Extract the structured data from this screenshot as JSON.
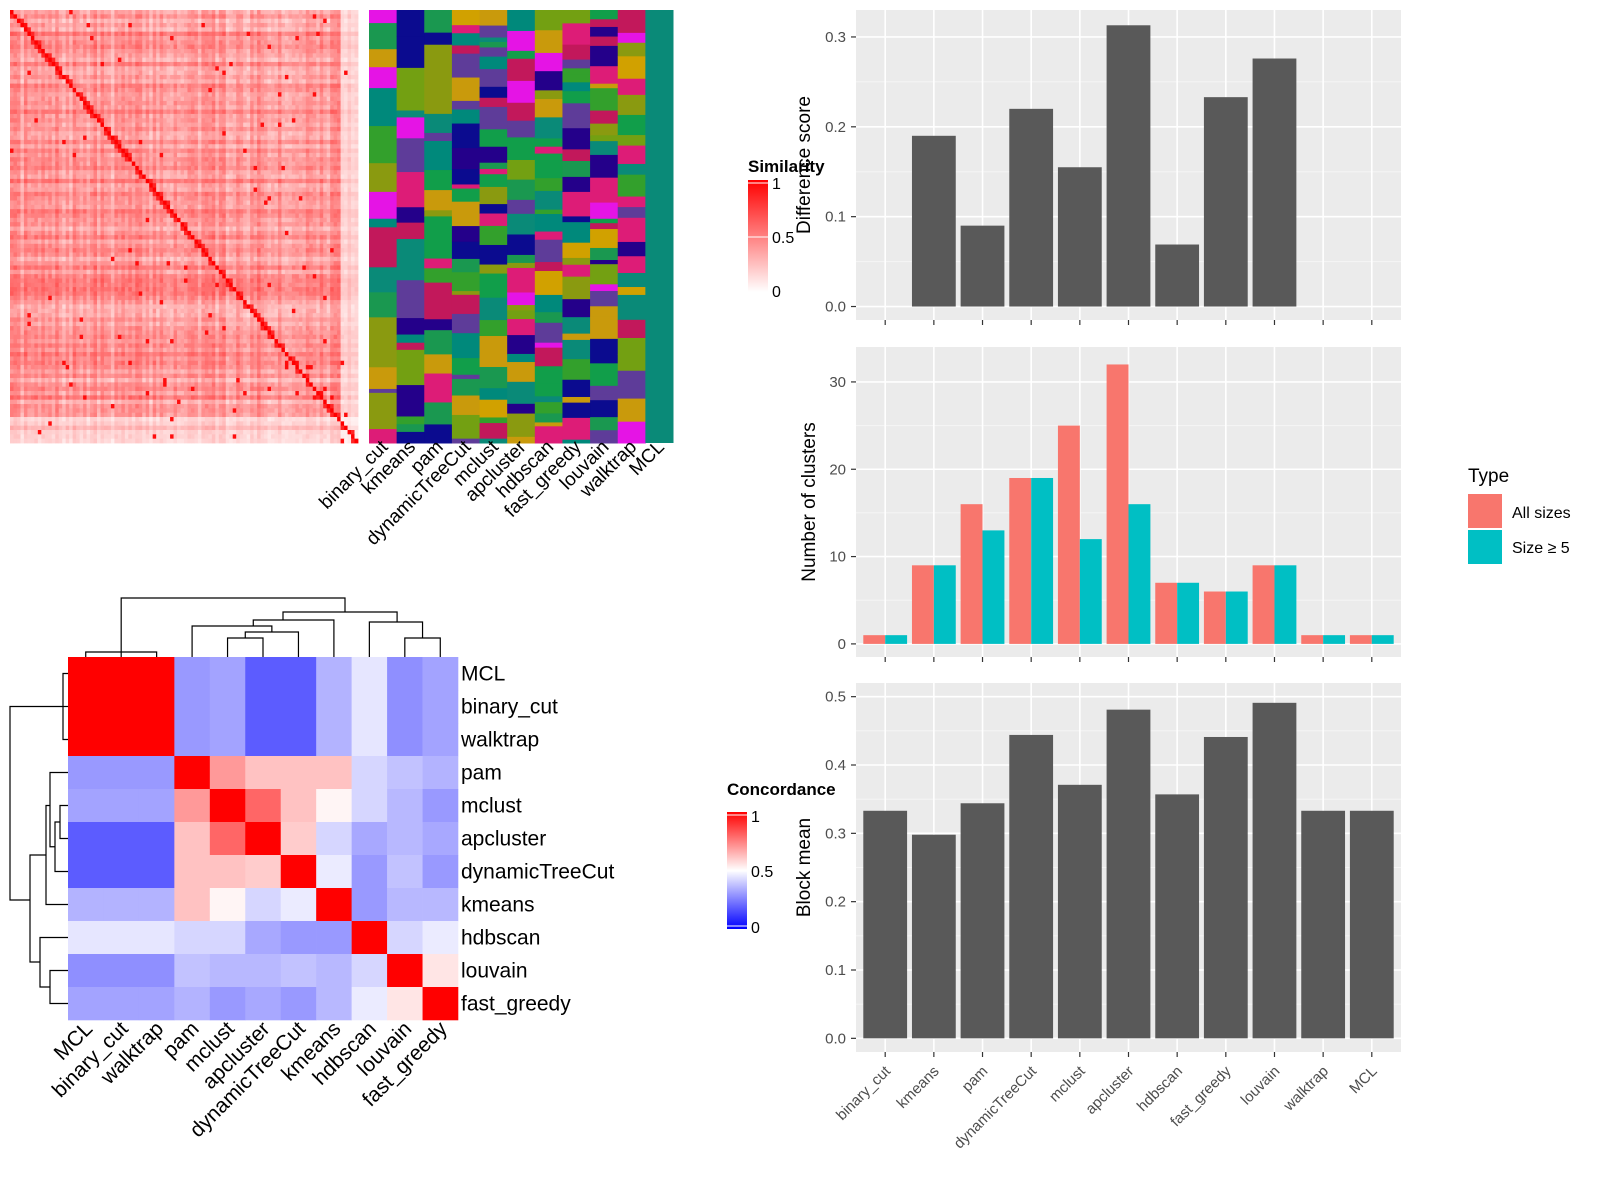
{
  "chart_data": [
    {
      "type": "heatmap",
      "panel": "similarity-heatmap",
      "legend_title": "Similarity",
      "legend_ticks": [
        "0",
        "0.5",
        "1"
      ],
      "color_low": "#ffffff",
      "color_high": "#ff0000",
      "annotation_columns": [
        "binary_cut",
        "kmeans",
        "pam",
        "dynamicTreeCut",
        "mclust",
        "apcluster",
        "hdbscan",
        "fast_greedy",
        "louvain",
        "walktrap",
        "MCL"
      ]
    },
    {
      "type": "heatmap",
      "panel": "concordance-heatmap",
      "legend_title": "Concordance",
      "legend_ticks": [
        "0",
        "0.5",
        "1"
      ],
      "color_low": "#0000ff",
      "color_mid": "#ffffff",
      "color_high": "#ff0000",
      "rows": [
        "MCL",
        "binary_cut",
        "walktrap",
        "pam",
        "mclust",
        "apcluster",
        "dynamicTreeCut",
        "kmeans",
        "hdbscan",
        "louvain",
        "fast_greedy"
      ],
      "columns": [
        "MCL",
        "binary_cut",
        "walktrap",
        "pam",
        "mclust",
        "apcluster",
        "dynamicTreeCut",
        "kmeans",
        "hdbscan",
        "louvain",
        "fast_greedy"
      ],
      "values": [
        [
          1.0,
          1.0,
          1.0,
          0.3,
          0.32,
          0.18,
          0.18,
          0.35,
          0.45,
          0.28,
          0.32
        ],
        [
          1.0,
          1.0,
          1.0,
          0.3,
          0.32,
          0.18,
          0.18,
          0.35,
          0.45,
          0.28,
          0.32
        ],
        [
          1.0,
          1.0,
          1.0,
          0.3,
          0.32,
          0.18,
          0.18,
          0.35,
          0.45,
          0.28,
          0.32
        ],
        [
          0.3,
          0.3,
          0.3,
          1.0,
          0.7,
          0.62,
          0.62,
          0.62,
          0.42,
          0.38,
          0.35
        ],
        [
          0.32,
          0.32,
          0.32,
          0.7,
          1.0,
          0.8,
          0.62,
          0.52,
          0.42,
          0.36,
          0.3
        ],
        [
          0.18,
          0.18,
          0.18,
          0.62,
          0.8,
          1.0,
          0.6,
          0.42,
          0.33,
          0.36,
          0.33
        ],
        [
          0.18,
          0.18,
          0.18,
          0.62,
          0.62,
          0.6,
          1.0,
          0.46,
          0.3,
          0.38,
          0.3
        ],
        [
          0.35,
          0.35,
          0.35,
          0.62,
          0.52,
          0.42,
          0.46,
          1.0,
          0.3,
          0.36,
          0.36
        ],
        [
          0.45,
          0.45,
          0.45,
          0.42,
          0.42,
          0.33,
          0.3,
          0.3,
          1.0,
          0.42,
          0.46
        ],
        [
          0.28,
          0.28,
          0.28,
          0.38,
          0.36,
          0.36,
          0.38,
          0.36,
          0.42,
          1.0,
          0.55
        ],
        [
          0.32,
          0.32,
          0.32,
          0.35,
          0.3,
          0.33,
          0.3,
          0.36,
          0.46,
          0.55,
          1.0
        ]
      ]
    },
    {
      "type": "bar",
      "panel": "difference-score",
      "categories": [
        "binary_cut",
        "kmeans",
        "pam",
        "dynamicTreeCut",
        "mclust",
        "apcluster",
        "hdbscan",
        "fast_greedy",
        "louvain",
        "walktrap",
        "MCL"
      ],
      "values": [
        0,
        0.19,
        0.09,
        0.22,
        0.155,
        0.313,
        0.069,
        0.233,
        0.276,
        0,
        0
      ],
      "ylabel": "Difference score",
      "ylim": [
        -0.015,
        0.33
      ],
      "yticks": [
        0.0,
        0.1,
        0.2,
        0.3
      ],
      "ytick_labels": [
        "0.0",
        "0.1",
        "0.2",
        "0.3"
      ],
      "color": "#595959"
    },
    {
      "type": "bar",
      "panel": "number-of-clusters",
      "categories": [
        "binary_cut",
        "kmeans",
        "pam",
        "dynamicTreeCut",
        "mclust",
        "apcluster",
        "hdbscan",
        "fast_greedy",
        "louvain",
        "walktrap",
        "MCL"
      ],
      "series": [
        {
          "name": "All sizes",
          "color": "#F8766D",
          "values": [
            1,
            9,
            16,
            19,
            25,
            32,
            7,
            6,
            9,
            1,
            1
          ]
        },
        {
          "name": "Size ≥ 5",
          "color": "#00BFC4",
          "values": [
            1,
            9,
            13,
            19,
            12,
            16,
            7,
            6,
            9,
            1,
            1
          ]
        }
      ],
      "ylabel": "Number of clusters",
      "ylim": [
        -1.5,
        34
      ],
      "yticks": [
        0,
        10,
        20,
        30
      ],
      "ytick_labels": [
        "0",
        "10",
        "20",
        "30"
      ],
      "legend_title": "Type",
      "legend_position": "right"
    },
    {
      "type": "bar",
      "panel": "block-mean",
      "categories": [
        "binary_cut",
        "kmeans",
        "pam",
        "dynamicTreeCut",
        "mclust",
        "apcluster",
        "hdbscan",
        "fast_greedy",
        "louvain",
        "walktrap",
        "MCL"
      ],
      "values": [
        0.333,
        0.298,
        0.344,
        0.444,
        0.371,
        0.481,
        0.357,
        0.441,
        0.491,
        0.333,
        0.333
      ],
      "ylabel": "Block mean",
      "ylim": [
        -0.02,
        0.52
      ],
      "yticks": [
        0.0,
        0.1,
        0.2,
        0.3,
        0.4,
        0.5
      ],
      "ytick_labels": [
        "0.0",
        "0.1",
        "0.2",
        "0.3",
        "0.4",
        "0.5"
      ],
      "color": "#595959"
    }
  ]
}
